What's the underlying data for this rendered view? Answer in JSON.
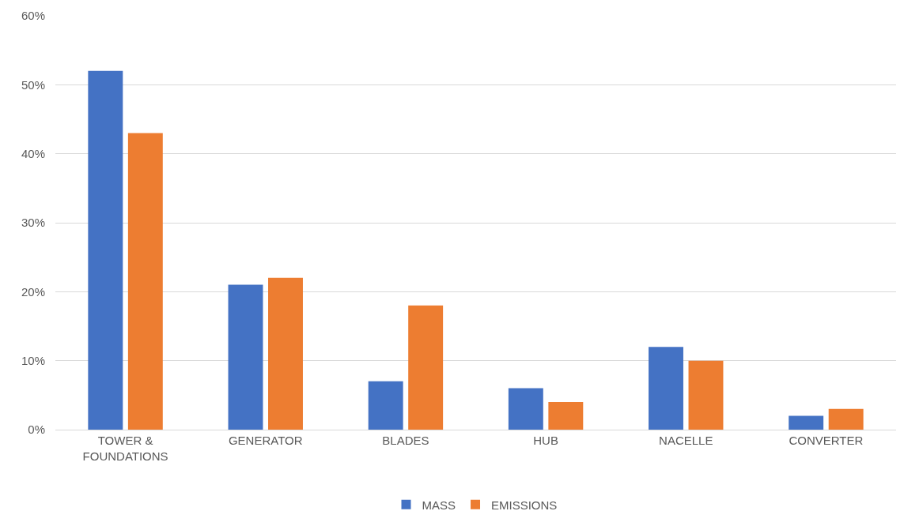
{
  "chart_data": {
    "type": "bar",
    "categories": [
      "TOWER & FOUNDATIONS",
      "GENERATOR",
      "BLADES",
      "HUB",
      "NACELLE",
      "CONVERTER"
    ],
    "series": [
      {
        "name": "MASS",
        "color": "#4472c4",
        "values": [
          52,
          21,
          7,
          6,
          12,
          2
        ]
      },
      {
        "name": "EMISSIONS",
        "color": "#ed7d31",
        "values": [
          43,
          22,
          18,
          4,
          10,
          3
        ]
      }
    ],
    "ylim": [
      0,
      60
    ],
    "yticks": [
      {
        "value": 0,
        "label": "0%"
      },
      {
        "value": 10,
        "label": "10%"
      },
      {
        "value": 20,
        "label": "20%"
      },
      {
        "value": 30,
        "label": "30%"
      },
      {
        "value": 40,
        "label": "40%"
      },
      {
        "value": 50,
        "label": "50%"
      },
      {
        "value": 60,
        "label": "60%"
      }
    ],
    "grid": "y",
    "legend": "bottom"
  }
}
